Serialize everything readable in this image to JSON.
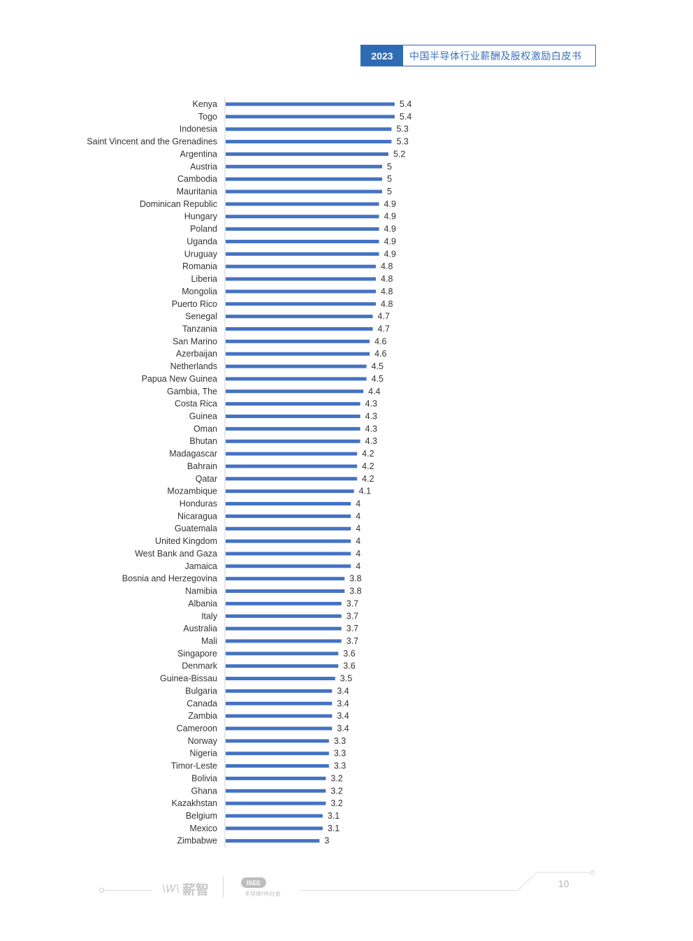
{
  "header": {
    "year": "2023",
    "title": "中国半导体行业薪酬及股权激励白皮书"
  },
  "footer": {
    "logo_mark": "\\W\\",
    "logo_text": "薪智",
    "logo2_badge": "ISEE",
    "logo2_sub": "半导体HR社会",
    "page_number": "10"
  },
  "chart_data": {
    "type": "bar",
    "orientation": "horizontal",
    "bar_color": "#4472c4",
    "grid": false,
    "data_labels": true,
    "categories": [
      "Kenya",
      "Togo",
      "Indonesia",
      "Saint Vincent and the Grenadines",
      "Argentina",
      "Austria",
      "Cambodia",
      "Mauritania",
      "Dominican Republic",
      "Hungary",
      "Poland",
      "Uganda",
      "Uruguay",
      "Romania",
      "Liberia",
      "Mongolia",
      "Puerto Rico",
      "Senegal",
      "Tanzania",
      "San Marino",
      "Azerbaijan",
      "Netherlands",
      "Papua New Guinea",
      "Gambia, The",
      "Costa Rica",
      "Guinea",
      "Oman",
      "Bhutan",
      "Madagascar",
      "Bahrain",
      "Qatar",
      "Mozambique",
      "Honduras",
      "Nicaragua",
      "Guatemala",
      "United Kingdom",
      "West Bank and Gaza",
      "Jamaica",
      "Bosnia and Herzegovina",
      "Namibia",
      "Albania",
      "Italy",
      "Australia",
      "Mali",
      "Singapore",
      "Denmark",
      "Guinea-Bissau",
      "Bulgaria",
      "Canada",
      "Zambia",
      "Cameroon",
      "Norway",
      "Nigeria",
      "Timor-Leste",
      "Bolivia",
      "Ghana",
      "Kazakhstan",
      "Belgium",
      "Mexico",
      "Zimbabwe"
    ],
    "values": [
      5.4,
      5.4,
      5.3,
      5.3,
      5.2,
      5,
      5,
      5,
      4.9,
      4.9,
      4.9,
      4.9,
      4.9,
      4.8,
      4.8,
      4.8,
      4.8,
      4.7,
      4.7,
      4.6,
      4.6,
      4.5,
      4.5,
      4.4,
      4.3,
      4.3,
      4.3,
      4.3,
      4.2,
      4.2,
      4.2,
      4.1,
      4,
      4,
      4,
      4,
      4,
      4,
      3.8,
      3.8,
      3.7,
      3.7,
      3.7,
      3.7,
      3.6,
      3.6,
      3.5,
      3.4,
      3.4,
      3.4,
      3.4,
      3.3,
      3.3,
      3.3,
      3.2,
      3.2,
      3.2,
      3.1,
      3.1,
      3
    ]
  }
}
